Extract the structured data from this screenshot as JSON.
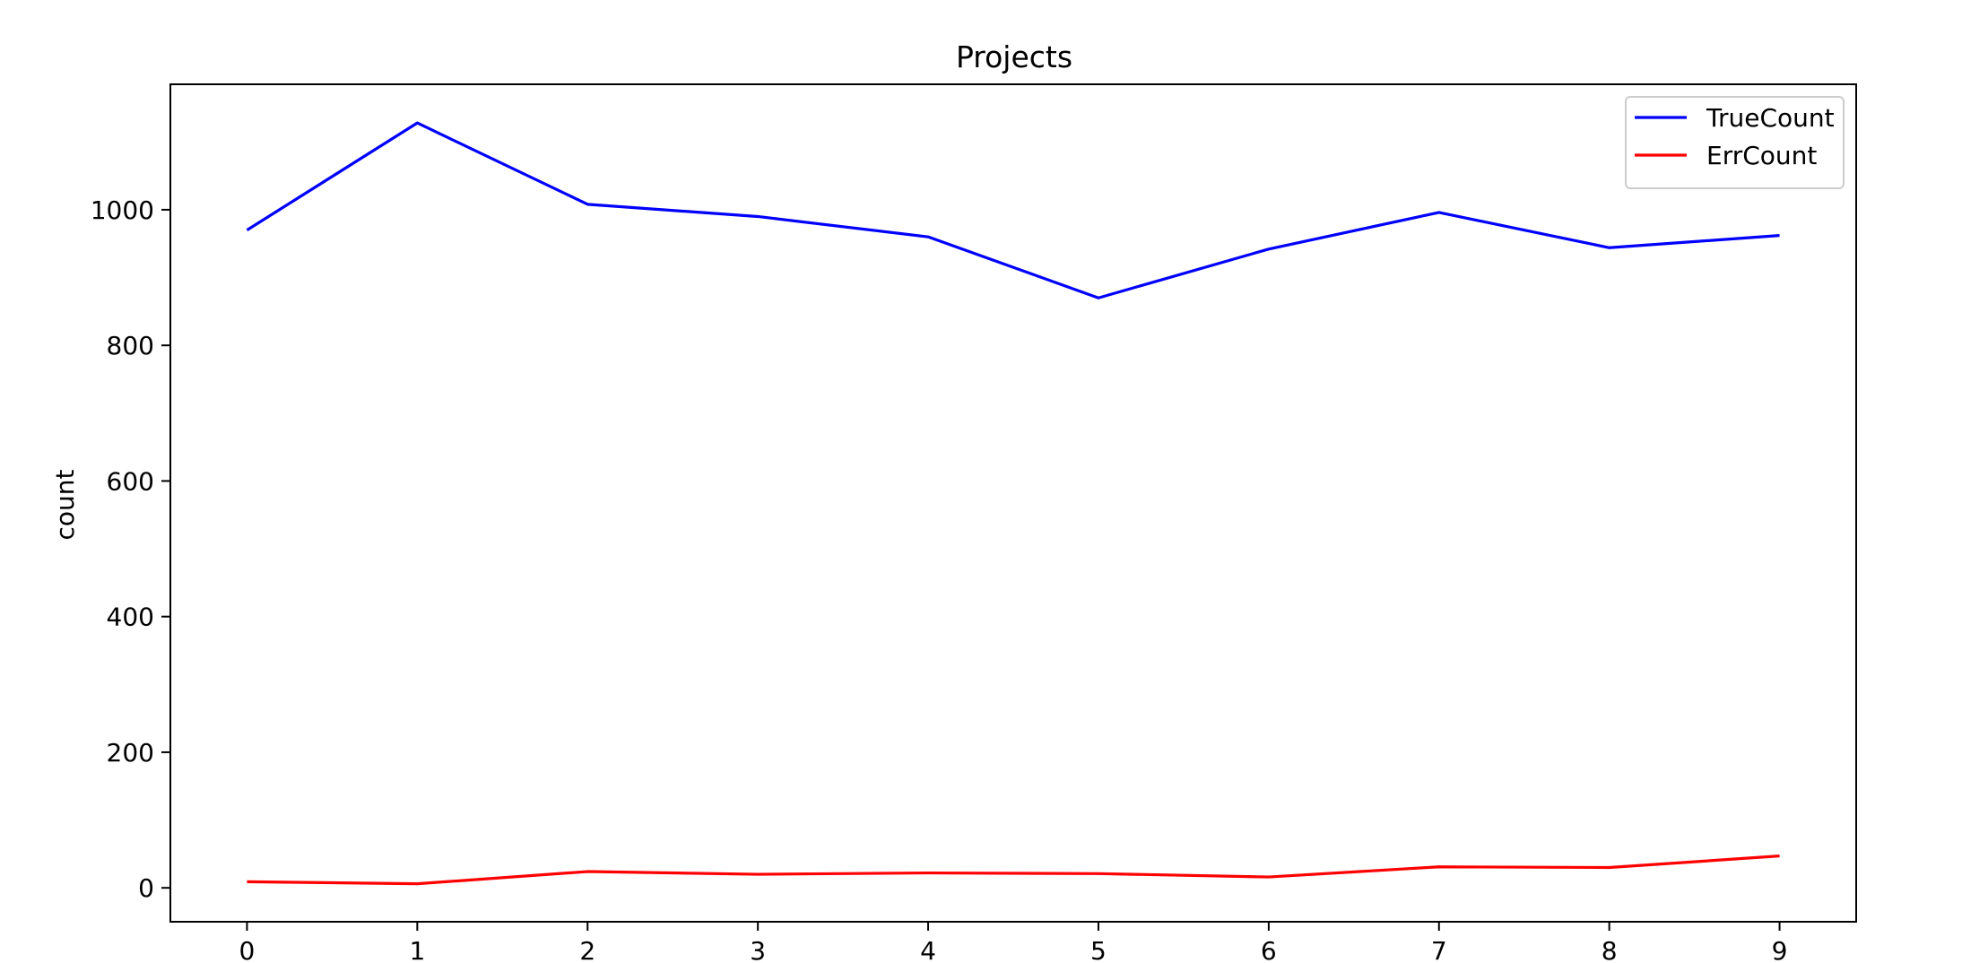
{
  "chart_data": {
    "type": "line",
    "title": "Projects",
    "xlabel": "",
    "ylabel": "count",
    "x": [
      0,
      1,
      2,
      3,
      4,
      5,
      6,
      7,
      8,
      9
    ],
    "xticks": [
      "0",
      "1",
      "2",
      "3",
      "4",
      "5",
      "6",
      "7",
      "8",
      "9"
    ],
    "yticks": [
      "0",
      "200",
      "400",
      "600",
      "800",
      "1000"
    ],
    "xlim": [
      -0.45,
      9.45
    ],
    "ylim": [
      -50,
      1185
    ],
    "grid": false,
    "legend_position": "upper right",
    "series": [
      {
        "name": "TrueCount",
        "color": "#0000ff",
        "values": [
          970,
          1128,
          1008,
          990,
          960,
          870,
          942,
          996,
          944,
          962
        ]
      },
      {
        "name": "ErrCount",
        "color": "#ff0000",
        "values": [
          9,
          6,
          24,
          20,
          22,
          21,
          16,
          31,
          30,
          47
        ]
      }
    ]
  }
}
